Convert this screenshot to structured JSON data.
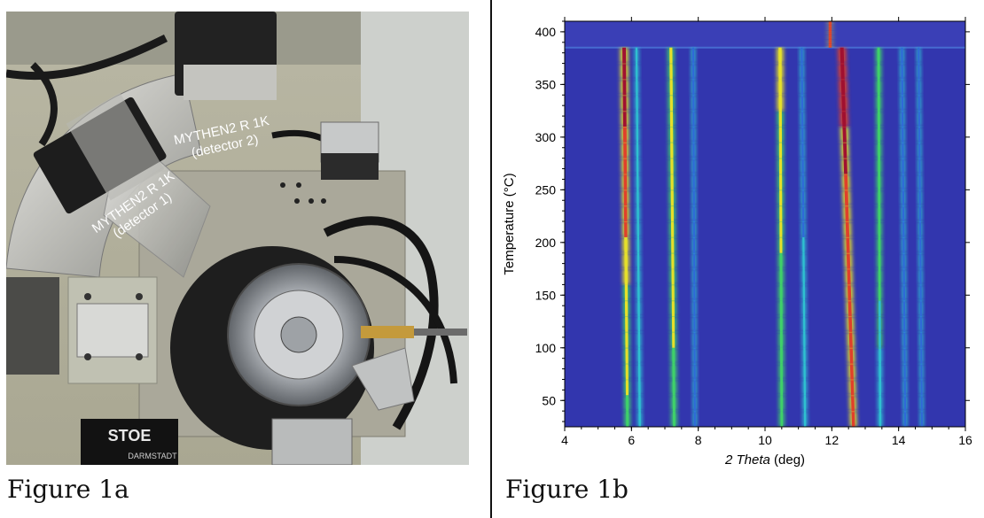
{
  "figure_a": {
    "caption": "Figure 1a",
    "detector1_name": "MYTHEN2 R 1K",
    "detector1_sub": "(detector 1)",
    "detector2_name": "MYTHEN2 R 1K",
    "detector2_sub": "(detector 2)",
    "brand": "STOE",
    "brand_sub": "DARMSTADT"
  },
  "figure_b": {
    "caption": "Figure 1b"
  },
  "chart_data": {
    "type": "heatmap",
    "title": "",
    "xlabel_italic": "2 Theta",
    "xlabel_unit": "(deg)",
    "ylabel": "Temperature (°C)",
    "xlim": [
      4,
      16
    ],
    "ylim": [
      25,
      410
    ],
    "xticks": [
      4,
      6,
      8,
      10,
      12,
      14,
      16
    ],
    "yticks": [
      50,
      100,
      150,
      200,
      250,
      300,
      350,
      400
    ],
    "colormap": [
      "#2b2fa8",
      "#2f6ad8",
      "#2fc0d0",
      "#3fd06a",
      "#e6e02a",
      "#e0402a",
      "#a01030"
    ],
    "background_color": "#3236ae",
    "phase_transition_temperature": 385,
    "peaks": [
      {
        "x_low": 5.88,
        "x_high": 5.78,
        "y_start": 25,
        "y_end": 385,
        "intensity_low": 0.55,
        "intensity_high": 0.95
      },
      {
        "x_low": 6.25,
        "x_high": 6.15,
        "y_start": 25,
        "y_end": 385,
        "intensity_low": 0.35,
        "intensity_high": 0.25
      },
      {
        "x_low": 7.28,
        "x_high": 7.18,
        "y_start": 25,
        "y_end": 385,
        "intensity_low": 0.55,
        "intensity_high": 0.7
      },
      {
        "x_low": 7.9,
        "x_high": 7.85,
        "y_start": 25,
        "y_end": 385,
        "intensity_low": 0.15,
        "intensity_high": 0.2
      },
      {
        "x_low": 10.5,
        "x_high": 10.45,
        "y_start": 25,
        "y_end": 385,
        "intensity_low": 0.45,
        "intensity_high": 0.75
      },
      {
        "x_low": 11.2,
        "x_high": 11.1,
        "y_start": 25,
        "y_end": 385,
        "intensity_low": 0.3,
        "intensity_high": 0.2
      },
      {
        "x_low": 12.65,
        "x_high": 12.3,
        "y_start": 25,
        "y_end": 385,
        "intensity_low": 0.75,
        "intensity_high": 1.0
      },
      {
        "x_low": 13.45,
        "x_high": 13.4,
        "y_start": 25,
        "y_end": 385,
        "intensity_low": 0.35,
        "intensity_high": 0.55
      },
      {
        "x_low": 14.2,
        "x_high": 14.1,
        "y_start": 25,
        "y_end": 385,
        "intensity_low": 0.2,
        "intensity_high": 0.25
      },
      {
        "x_low": 14.7,
        "x_high": 14.6,
        "y_start": 25,
        "y_end": 385,
        "intensity_low": 0.15,
        "intensity_high": 0.15
      },
      {
        "x_low": 11.95,
        "x_high": 11.95,
        "y_start": 385,
        "y_end": 410,
        "intensity_low": 0.75,
        "intensity_high": 0.75
      }
    ]
  }
}
